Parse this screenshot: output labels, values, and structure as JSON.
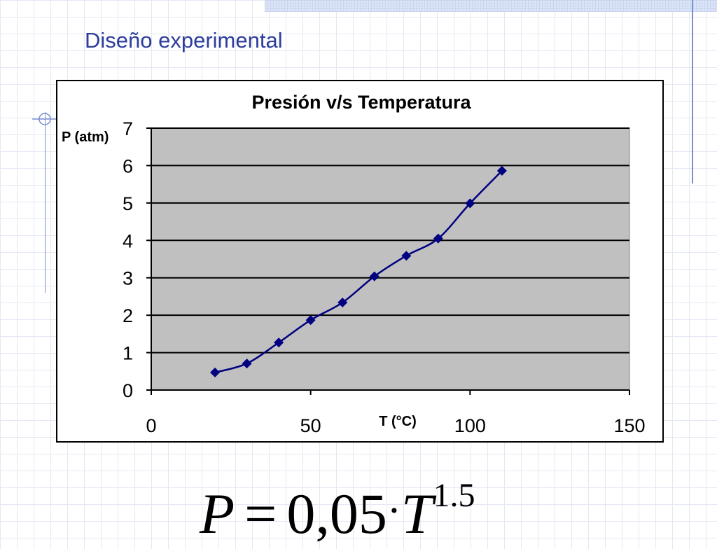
{
  "slide": {
    "title": "Diseño experimental"
  },
  "formula": {
    "lhs": "P",
    "equals": "=",
    "coefficient": "0,05",
    "operator": "·",
    "base": "T",
    "exponent": "1.5"
  },
  "chart_data": {
    "type": "scatter",
    "title": "Presión v/s Temperatura",
    "xlabel": "T (°C)",
    "ylabel": "P (atm)",
    "xlim": [
      0,
      150
    ],
    "ylim": [
      0,
      7
    ],
    "xticks": [
      0,
      50,
      100,
      150
    ],
    "yticks": [
      0,
      1,
      2,
      3,
      4,
      5,
      6,
      7
    ],
    "grid": "horizontal",
    "legend": "none",
    "series": [
      {
        "x": [
          20,
          30,
          40,
          50,
          60,
          70,
          80,
          90,
          100,
          110
        ],
        "y": [
          0.47,
          0.71,
          1.27,
          1.87,
          2.34,
          3.04,
          3.59,
          4.05,
          4.99,
          5.86
        ],
        "marker": "diamond",
        "line": "smooth",
        "color": "#000080"
      }
    ],
    "plot_background": "#c0c0c0"
  }
}
